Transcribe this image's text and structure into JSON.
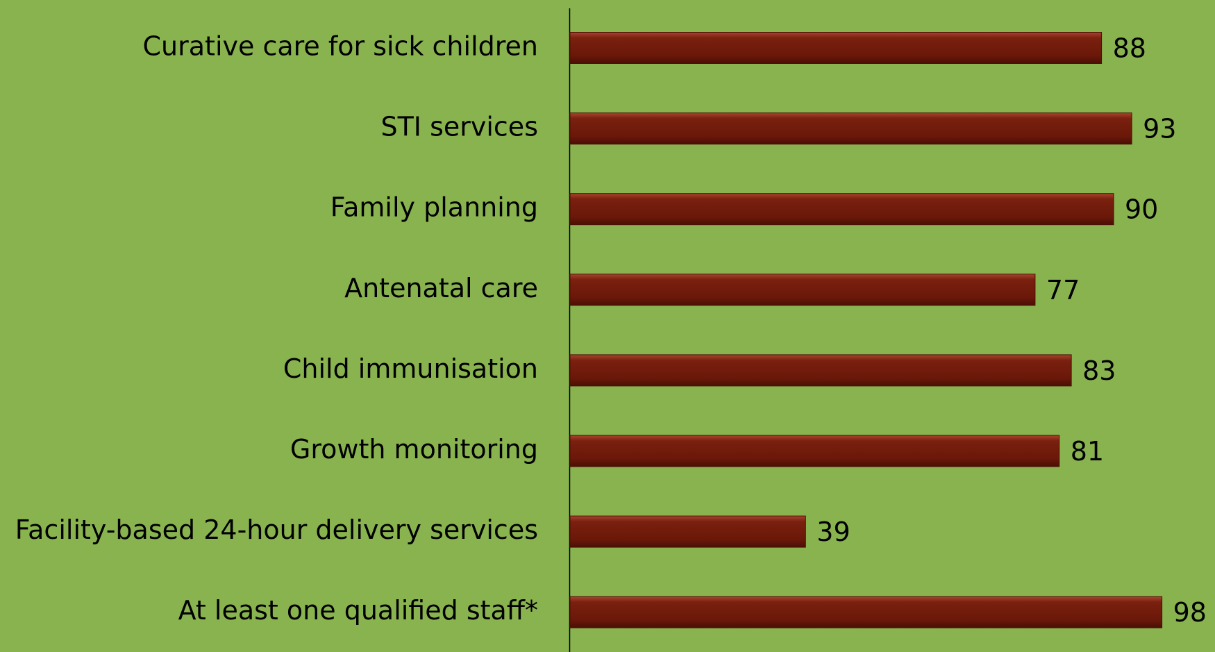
{
  "chart_data": {
    "type": "bar",
    "orientation": "horizontal",
    "categories": [
      "Curative care for sick children",
      "STI services",
      "Family planning",
      "Antenatal care",
      "Child immunisation",
      "Growth monitoring",
      "Facility-based 24-hour delivery services",
      "At least one qualified staff*"
    ],
    "values": [
      88,
      93,
      90,
      77,
      83,
      81,
      39,
      98
    ],
    "color": "#6e1a0b",
    "xlim": [
      0,
      100
    ]
  }
}
